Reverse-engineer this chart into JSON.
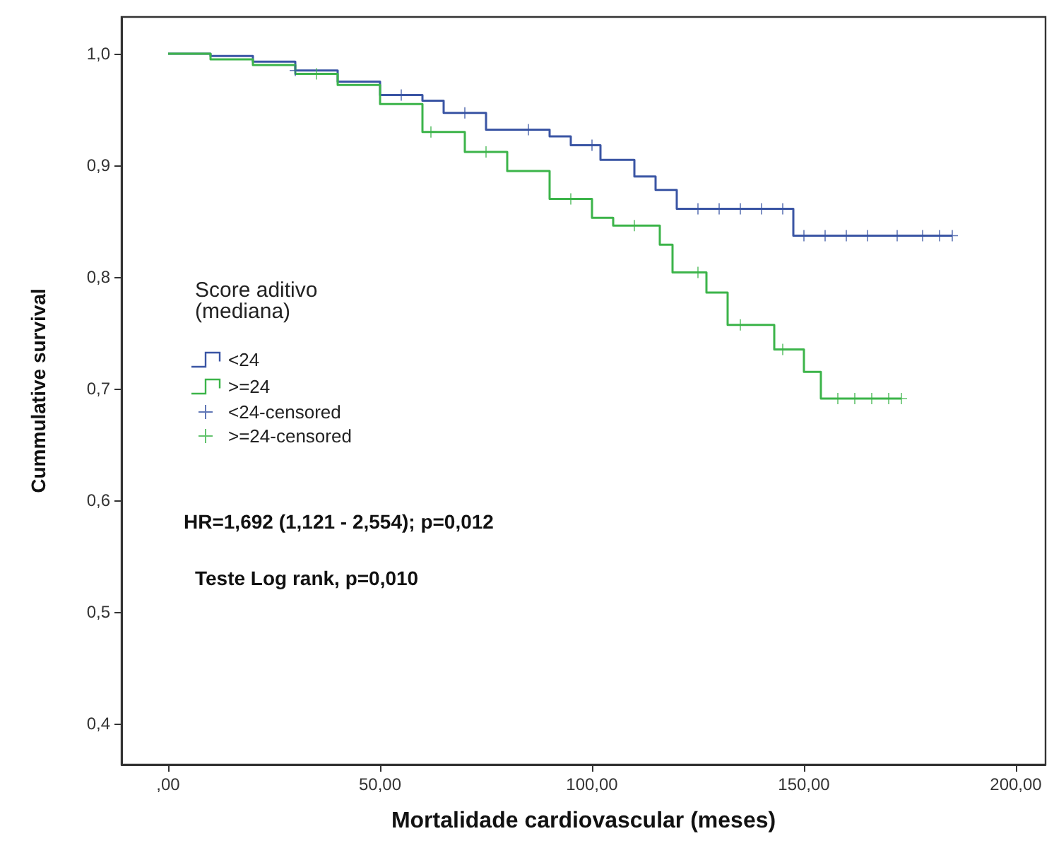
{
  "chart_data": {
    "type": "step",
    "xlabel": "Mortalidade cardiovascular (meses)",
    "ylabel": "Cummulative survival",
    "legend_title": "Score aditivo\n(mediana)",
    "legend": "left",
    "grid": false,
    "xlim": [
      -11,
      207
    ],
    "ylim": [
      0.363,
      1.033
    ],
    "xticks": [
      {
        "value": 0,
        "label": ",00"
      },
      {
        "value": 50,
        "label": "50,00"
      },
      {
        "value": 100,
        "label": "100,00"
      },
      {
        "value": 150,
        "label": "150,00"
      },
      {
        "value": 200,
        "label": "200,00"
      }
    ],
    "yticks": [
      {
        "value": 0.4,
        "label": "0,4"
      },
      {
        "value": 0.5,
        "label": "0,5"
      },
      {
        "value": 0.6,
        "label": "0,6"
      },
      {
        "value": 0.7,
        "label": "0,7"
      },
      {
        "value": 0.8,
        "label": "0,8"
      },
      {
        "value": 0.9,
        "label": "0,9"
      },
      {
        "value": 1.0,
        "label": "1,0"
      }
    ],
    "series": [
      {
        "name": "<24",
        "color": "#3a55a4",
        "type": "step",
        "marker": "none",
        "x": [
          0,
          10,
          20,
          30,
          40,
          50,
          60,
          65,
          75,
          90,
          95,
          102,
          110,
          115,
          120,
          147.5,
          185
        ],
        "values": [
          1.0,
          0.998,
          0.993,
          0.985,
          0.975,
          0.963,
          0.958,
          0.947,
          0.932,
          0.926,
          0.918,
          0.905,
          0.89,
          0.878,
          0.861,
          0.837,
          0.837
        ]
      },
      {
        "name": ">=24",
        "color": "#3cb44a",
        "type": "step",
        "marker": "none",
        "x": [
          0,
          10,
          20,
          30,
          40,
          50,
          60,
          70,
          80,
          90,
          100,
          105,
          116,
          119,
          127,
          132,
          143,
          150,
          154,
          173
        ],
        "values": [
          1.0,
          0.995,
          0.99,
          0.982,
          0.972,
          0.955,
          0.93,
          0.912,
          0.895,
          0.87,
          0.853,
          0.846,
          0.829,
          0.804,
          0.786,
          0.757,
          0.735,
          0.715,
          0.691,
          0.691
        ]
      },
      {
        "name": "<24-censored",
        "color": "#3a55a4",
        "type": "scatter",
        "marker": "cross",
        "x": [
          30,
          55,
          70,
          85,
          100,
          125,
          130,
          135,
          140,
          145,
          150,
          155,
          160,
          165,
          172,
          178,
          182,
          185
        ],
        "values": [
          0.985,
          0.963,
          0.947,
          0.932,
          0.918,
          0.861,
          0.861,
          0.861,
          0.861,
          0.861,
          0.837,
          0.837,
          0.837,
          0.837,
          0.837,
          0.837,
          0.837,
          0.837
        ]
      },
      {
        "name": ">=24-censored",
        "color": "#3cb44a",
        "type": "scatter",
        "marker": "cross",
        "x": [
          35,
          62,
          75,
          95,
          110,
          125,
          135,
          145,
          158,
          162,
          166,
          170,
          173
        ],
        "values": [
          0.982,
          0.93,
          0.912,
          0.87,
          0.846,
          0.804,
          0.757,
          0.735,
          0.691,
          0.691,
          0.691,
          0.691,
          0.691
        ]
      }
    ],
    "annotations": [
      "HR=1,692 (1,121 - 2,554); p=0,012",
      "Teste Log rank, p=0,010"
    ]
  }
}
